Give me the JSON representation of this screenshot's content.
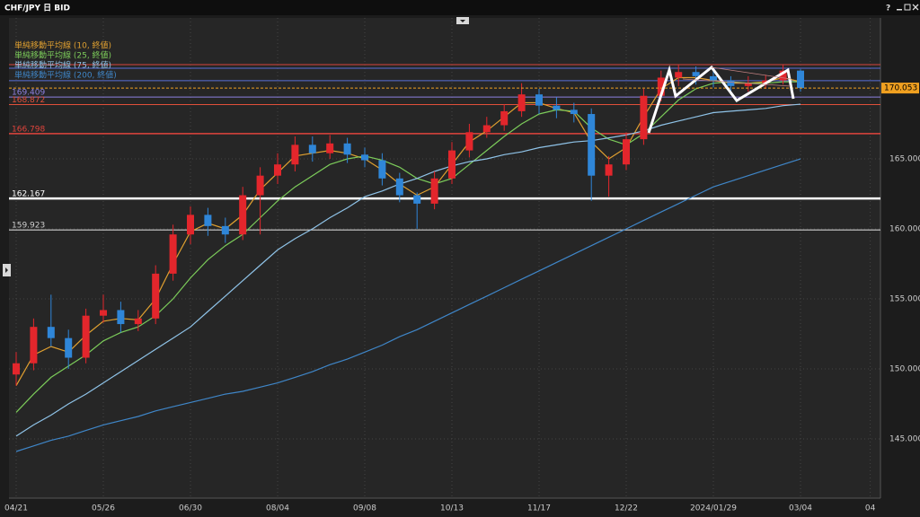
{
  "window": {
    "help": "?"
  },
  "chart_data": {
    "type": "candlestick",
    "title": "CHF/JPY 日 BID",
    "categories": [
      "04/21",
      null,
      null,
      null,
      null,
      "05/26",
      null,
      null,
      null,
      null,
      "06/30",
      null,
      null,
      null,
      null,
      "08/04",
      null,
      null,
      null,
      null,
      "09/08",
      null,
      null,
      null,
      null,
      "10/13",
      null,
      null,
      null,
      null,
      "11/17",
      null,
      null,
      null,
      null,
      "12/22",
      null,
      null,
      null,
      null,
      "2024/01/29",
      null,
      null,
      null,
      null,
      "03/04",
      null,
      null,
      null,
      "04"
    ],
    "open": [
      149.6,
      150.4,
      153.0,
      152.2,
      150.8,
      153.8,
      154.2,
      153.2,
      153.6,
      156.8,
      159.6,
      161.0,
      160.2,
      159.6,
      162.4,
      163.8,
      164.6,
      166.0,
      165.4,
      166.1,
      165.3,
      164.9,
      163.6,
      162.4,
      161.8,
      163.6,
      165.6,
      166.9,
      167.4,
      168.4,
      169.6,
      168.8,
      168.5,
      168.2,
      163.8,
      164.6,
      166.4,
      169.5,
      170.8,
      171.2,
      170.9,
      170.6,
      170.2,
      170.4,
      170.6,
      171.3,
      null,
      null,
      null,
      null
    ],
    "high": [
      151.2,
      153.6,
      155.3,
      152.8,
      154.3,
      155.3,
      154.8,
      154.2,
      157.4,
      160.3,
      161.6,
      161.5,
      160.8,
      163.0,
      164.4,
      165.4,
      166.6,
      166.6,
      166.7,
      166.5,
      165.8,
      165.4,
      164.0,
      162.6,
      164.1,
      166.2,
      167.5,
      168.0,
      168.9,
      170.4,
      170.0,
      169.4,
      169.0,
      168.6,
      165.2,
      166.9,
      170.0,
      171.3,
      171.7,
      171.6,
      171.3,
      170.9,
      170.9,
      171.0,
      171.7,
      171.4,
      null,
      null,
      null,
      null
    ],
    "low": [
      148.8,
      149.9,
      151.6,
      150.0,
      150.4,
      153.3,
      152.6,
      152.7,
      153.2,
      156.3,
      158.9,
      159.5,
      159.0,
      159.2,
      159.6,
      163.2,
      164.1,
      164.8,
      165.0,
      164.7,
      164.4,
      163.1,
      161.9,
      160.0,
      161.4,
      163.2,
      165.1,
      166.5,
      167.0,
      168.0,
      168.2,
      167.9,
      167.6,
      162.0,
      162.3,
      164.2,
      166.0,
      169.1,
      170.2,
      170.3,
      170.1,
      169.7,
      169.8,
      170.0,
      170.3,
      169.8,
      null,
      null,
      null,
      null
    ],
    "close": [
      150.4,
      153.0,
      152.2,
      150.8,
      153.8,
      154.2,
      153.2,
      153.6,
      156.8,
      159.6,
      161.0,
      160.2,
      159.6,
      162.4,
      163.8,
      164.6,
      166.0,
      165.4,
      166.1,
      165.3,
      164.9,
      163.6,
      162.4,
      161.8,
      163.6,
      165.6,
      166.9,
      167.4,
      168.4,
      169.6,
      168.8,
      168.5,
      168.2,
      163.8,
      164.6,
      166.4,
      169.5,
      170.8,
      171.2,
      170.9,
      170.6,
      170.2,
      170.4,
      170.6,
      171.3,
      170.053,
      null,
      null,
      null,
      null
    ],
    "up_color": "#e3262c",
    "down_color": "#2f86d8",
    "series": [
      {
        "name": "単純移動平均線 (10, 終値)",
        "color": "#e0a030",
        "values": [
          148.8,
          151.0,
          151.6,
          151.2,
          152.4,
          153.4,
          153.6,
          153.5,
          155.0,
          157.5,
          159.8,
          160.4,
          160.0,
          161.0,
          162.8,
          164.0,
          165.2,
          165.4,
          165.6,
          165.4,
          165.0,
          164.2,
          163.2,
          162.4,
          163.0,
          164.6,
          166.2,
          167.0,
          168.0,
          169.0,
          169.0,
          168.6,
          168.3,
          166.2,
          165.0,
          165.8,
          168.0,
          170.0,
          170.8,
          170.8,
          170.6,
          170.4,
          170.4,
          170.5,
          170.8,
          170.5,
          null,
          null,
          null,
          null
        ]
      },
      {
        "name": "単純移動平均線 (25, 終値)",
        "color": "#7ccc5a",
        "values": [
          146.9,
          148.2,
          149.4,
          150.2,
          151.0,
          152.0,
          152.6,
          153.0,
          153.8,
          155.0,
          156.5,
          157.8,
          158.8,
          159.6,
          160.8,
          162.0,
          163.0,
          163.8,
          164.6,
          165.0,
          165.2,
          164.9,
          164.4,
          163.6,
          163.2,
          163.6,
          164.6,
          165.6,
          166.6,
          167.5,
          168.2,
          168.5,
          168.4,
          167.2,
          166.4,
          166.0,
          166.8,
          168.0,
          169.2,
          170.0,
          170.4,
          170.5,
          170.4,
          170.4,
          170.5,
          170.5,
          null,
          null,
          null,
          null
        ]
      },
      {
        "name": "単純移動平均線 (75, 終値)",
        "color": "#8fc3e8",
        "values": [
          145.2,
          146.0,
          146.7,
          147.5,
          148.2,
          149.0,
          149.8,
          150.6,
          151.4,
          152.2,
          153.0,
          154.1,
          155.2,
          156.3,
          157.4,
          158.5,
          159.3,
          160.0,
          160.8,
          161.5,
          162.3,
          162.7,
          163.2,
          163.6,
          164.1,
          164.5,
          164.8,
          165.0,
          165.3,
          165.5,
          165.8,
          166.0,
          166.2,
          166.3,
          166.5,
          166.7,
          167.0,
          167.4,
          167.7,
          168.0,
          168.3,
          168.4,
          168.5,
          168.6,
          168.8,
          168.9,
          null,
          null,
          null,
          null
        ]
      },
      {
        "name": "単純移動平均線 (200, 終値)",
        "color": "#3f86c8",
        "values": [
          144.1,
          144.5,
          144.9,
          145.2,
          145.6,
          146.0,
          146.3,
          146.6,
          147.0,
          147.3,
          147.6,
          147.9,
          148.2,
          148.4,
          148.7,
          149.0,
          149.4,
          149.8,
          150.3,
          150.7,
          151.2,
          151.7,
          152.3,
          152.8,
          153.4,
          154.0,
          154.6,
          155.2,
          155.8,
          156.4,
          157.0,
          157.6,
          158.2,
          158.8,
          159.4,
          160.0,
          160.6,
          161.2,
          161.8,
          162.4,
          163.0,
          163.4,
          163.8,
          164.2,
          164.6,
          165.0,
          null,
          null,
          null,
          null
        ]
      }
    ],
    "price_lines": [
      {
        "value": 171.73,
        "color": "#d8443c",
        "width": 1,
        "show_label": false
      },
      {
        "value": 171.47,
        "color": "#5a6fd8",
        "width": 1,
        "show_label": false
      },
      {
        "value": 170.58,
        "color": "#5a6fd8",
        "width": 1,
        "show_label": false
      },
      {
        "value": 169.409,
        "color": "#8d80e0",
        "width": 1,
        "show_label": true
      },
      {
        "value": 168.872,
        "color": "#e0503a",
        "width": 1,
        "show_label": true
      },
      {
        "value": 166.798,
        "color": "#e0443c",
        "width": 1.5,
        "show_label": true
      },
      {
        "value": 162.167,
        "color": "#ffffff",
        "width": 2.5,
        "show_label": true
      },
      {
        "value": 159.923,
        "color": "#cfcfcf",
        "width": 1.2,
        "show_label": true
      }
    ],
    "last_price": 170.053,
    "last_price_color": "#f0a020",
    "ylim": [
      140.77,
      175.06
    ],
    "yticks": [
      {
        "value": 145,
        "label": "145.000"
      },
      {
        "value": 150,
        "label": "150.000"
      },
      {
        "value": 155,
        "label": "155.000"
      },
      {
        "value": 160,
        "label": "160.000"
      },
      {
        "value": 165,
        "label": "165.000"
      }
    ],
    "grid": true,
    "legend": "upper left"
  }
}
